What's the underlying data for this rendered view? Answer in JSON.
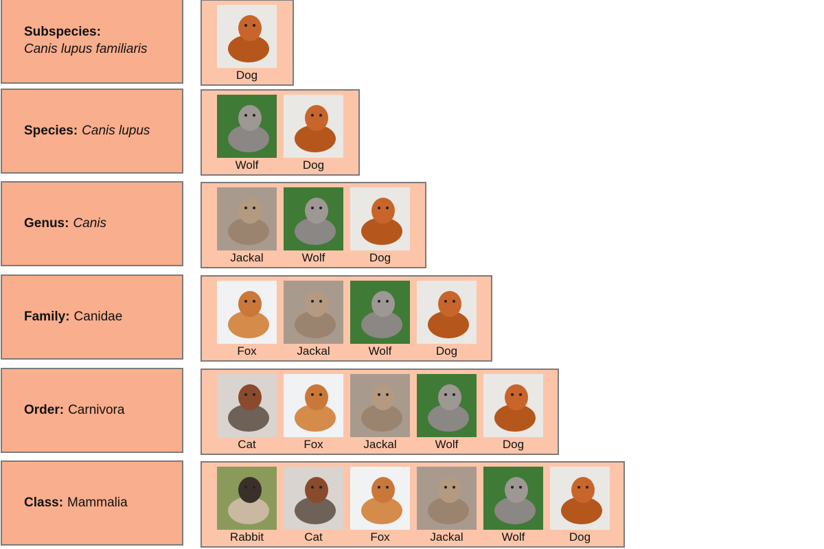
{
  "rows": [
    {
      "rank": "Subspecies:",
      "name": "Canis lupus familiaris",
      "italic": true,
      "animals": [
        "Dog"
      ]
    },
    {
      "rank": "Species:",
      "name": "Canis lupus",
      "italic": true,
      "animals": [
        "Wolf",
        "Dog"
      ]
    },
    {
      "rank": "Genus:",
      "name": "Canis",
      "italic": true,
      "animals": [
        "Jackal",
        "Wolf",
        "Dog"
      ]
    },
    {
      "rank": "Family:",
      "name": "Canidae",
      "italic": false,
      "animals": [
        "Fox",
        "Jackal",
        "Wolf",
        "Dog"
      ]
    },
    {
      "rank": "Order:",
      "name": "Carnivora",
      "italic": false,
      "animals": [
        "Cat",
        "Fox",
        "Jackal",
        "Wolf",
        "Dog"
      ]
    },
    {
      "rank": "Class:",
      "name": "Mammalia",
      "italic": false,
      "animals": [
        "Rabbit",
        "Cat",
        "Fox",
        "Jackal",
        "Wolf",
        "Dog"
      ]
    }
  ]
}
